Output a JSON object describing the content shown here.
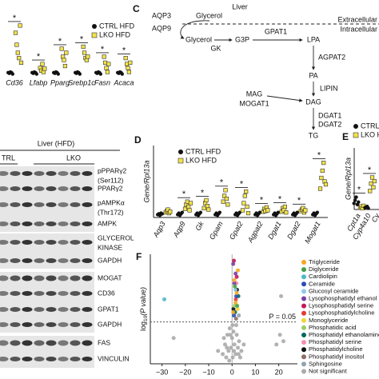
{
  "panel_b": {
    "categories": [
      "Cd36",
      "Lfabp",
      "Pparg",
      "Srebp1c",
      "Fasn",
      "Acaca"
    ],
    "significance": [
      "*",
      "*",
      "*",
      "*",
      "*",
      "*"
    ],
    "ylim": [
      0,
      10
    ],
    "series": [
      {
        "name": "CTRL HFD",
        "color": "#111111",
        "marker": "circle",
        "values": [
          [
            0.5,
            0.4,
            0.6,
            0.5,
            0.3
          ],
          [
            0.5,
            0.4,
            0.6,
            0.5,
            0.3
          ],
          [
            0.5,
            0.4,
            0.6,
            0.5,
            0.3
          ],
          [
            0.5,
            0.4,
            0.6,
            0.5,
            0.3
          ],
          [
            0.5,
            0.4,
            0.6,
            0.5,
            0.3
          ],
          [
            0.5,
            0.4,
            0.6,
            0.5,
            0.3
          ]
        ]
      },
      {
        "name": "LKO HFD",
        "color": "#f2e24b",
        "marker": "square",
        "values": [
          [
            6.5,
            4.7,
            3.5,
            2.7,
            7.6,
            2.0
          ],
          [
            1.2,
            0.8,
            1.8,
            0.6,
            1.1
          ],
          [
            4.1,
            2.9,
            2.4,
            1.5,
            3.5
          ],
          [
            4.4,
            3.5,
            2.7,
            2.4,
            2.9
          ],
          [
            2.9,
            2.0,
            1.2,
            0.6,
            1.8
          ],
          [
            2.7,
            1.8,
            1.2,
            0.6,
            2.0
          ]
        ]
      }
    ]
  },
  "panel_c": {
    "label": "C",
    "nodes": [
      {
        "text": "Liver",
        "color": "#111111"
      },
      {
        "text": "AQP3",
        "color": "#111111"
      },
      {
        "text": "Glycerol",
        "color": "#111111"
      },
      {
        "text": "Extracellular",
        "color": "#111111"
      },
      {
        "text": "Intracellular",
        "color": "#111111"
      },
      {
        "text": "AQP9",
        "color": "#2b3aa8"
      },
      {
        "text": "Glycerol",
        "color": "#111111"
      },
      {
        "text": "GK",
        "color": "#2b3aa8"
      },
      {
        "text": "G3P",
        "color": "#111111"
      },
      {
        "text": "GPAT1",
        "color": "#2b3aa8"
      },
      {
        "text": "LPA",
        "color": "#111111"
      },
      {
        "text": "AGPAT2",
        "color": "#2b3aa8"
      },
      {
        "text": "PA",
        "color": "#111111"
      },
      {
        "text": "LIPIN",
        "color": "#111111"
      },
      {
        "text": "MAG",
        "color": "#111111"
      },
      {
        "text": "MOGAT1",
        "color": "#2b3aa8"
      },
      {
        "text": "DAG",
        "color": "#111111"
      },
      {
        "text": "DGAT1",
        "color": "#2b3aa8"
      },
      {
        "text": "DGAT2",
        "color": "#2b3aa8"
      },
      {
        "text": "TG",
        "color": "#111111"
      }
    ]
  },
  "blot": {
    "title": "Liver (HFD)",
    "groups": [
      "TRL",
      "LKO"
    ],
    "bands": [
      "pPPARγ2",
      "(Ser112)",
      "PPARγ2",
      "pAMPKα",
      "(Thr172)",
      "AMPK",
      "GLYCEROL",
      "KINASE",
      "GAPDH",
      "MOGAT",
      "CD36",
      "GPAT1",
      "GAPDH",
      "FAS",
      "VINCULIN"
    ]
  },
  "panel_d": {
    "label": "D",
    "y_label": "Gene/Rpl13a",
    "categories": [
      "Aqp3",
      "Aqp9",
      "Gk",
      "Gpam",
      "Gpat2",
      "Agpat2",
      "Dgat1",
      "Dgat2",
      "Mogat1"
    ],
    "significance": [
      null,
      "*",
      "*",
      "*",
      "*",
      "*",
      "*",
      "*",
      "*"
    ],
    "ylim": [
      0,
      10
    ],
    "series": [
      {
        "name": "CTRL HFD",
        "color": "#111111",
        "marker": "circle",
        "values": [
          [
            0.4,
            0.5,
            0.3,
            0.6,
            0.5
          ],
          [
            0.4,
            0.6,
            0.3,
            0.5,
            0.7
          ],
          [
            0.4,
            0.6,
            0.3,
            0.5,
            0.7
          ],
          [
            0.4,
            0.6,
            0.3,
            0.5,
            0.7
          ],
          [
            0.4,
            0.6,
            0.3,
            0.5,
            0.7
          ],
          [
            0.4,
            0.6,
            0.3,
            0.5,
            0.7
          ],
          [
            0.4,
            0.6,
            0.3,
            0.5,
            0.7
          ],
          [
            0.4,
            0.6,
            0.3,
            0.5,
            0.7
          ],
          [
            0.4,
            0.6,
            0.3,
            0.5,
            0.7
          ]
        ]
      },
      {
        "name": "LKO HFD",
        "color": "#f2e24b",
        "marker": "square",
        "values": [
          [
            0.7,
            0.9,
            1.1,
            0.6,
            0.8
          ],
          [
            1.2,
            1.8,
            2.2,
            1.5,
            1.0,
            2.0
          ],
          [
            1.3,
            2.0,
            2.4,
            1.6,
            1.1
          ],
          [
            2.2,
            3.0,
            3.8,
            2.6,
            1.8
          ],
          [
            1.0,
            2.0,
            3.0,
            3.6,
            1.5,
            0.6
          ],
          [
            0.8,
            1.2,
            0.9,
            1.4,
            1.0
          ],
          [
            0.8,
            1.3,
            1.0,
            1.5,
            0.7
          ],
          [
            0.9,
            1.1,
            1.3,
            0.7,
            1.0
          ],
          [
            4.0,
            5.5,
            6.5,
            7.6,
            5.0,
            4.6
          ]
        ]
      }
    ]
  },
  "panel_e": {
    "label": "E",
    "y_label": "Gene/Rpl13a",
    "categories": [
      "Cpt1a",
      "Cyp4a10",
      "Cy"
    ],
    "significance": [
      "*",
      "*",
      null
    ],
    "ylim": [
      0,
      10
    ],
    "series": [
      {
        "name": "CTRL H",
        "color": "#111111",
        "marker": "circle",
        "values": [
          [
            1.0,
            1.5,
            2.0,
            0.8,
            1.2
          ],
          [
            0.3,
            0.4,
            0.5,
            0.2
          ],
          []
        ]
      },
      {
        "name": "LKO HF",
        "color": "#f2e24b",
        "marker": "square",
        "values": [
          [
            0.3,
            0.5,
            0.2,
            0.6
          ],
          [
            3.0,
            4.2,
            5.2,
            3.6,
            4.6
          ],
          []
        ]
      }
    ]
  },
  "panel_f": {
    "label": "F",
    "y_label": [
      "log",
      "10",
      "(P value)"
    ],
    "xlim": [
      -35,
      28
    ],
    "ylim": [
      0,
      3.4
    ],
    "xticks": [
      {
        "value": -30,
        "label": "−30"
      },
      {
        "value": -20,
        "label": "−20"
      },
      {
        "value": -10,
        "label": "−10"
      },
      0,
      10,
      20
    ],
    "threshold": {
      "value": 1.301,
      "label": "P = 0.05"
    },
    "series": [
      {
        "name": "Triglyceride",
        "color": "#f5a623",
        "x": [
          1,
          2,
          1.5,
          2.5,
          0.5
        ],
        "y": [
          2.6,
          2.2,
          1.9,
          2.9,
          1.6
        ]
      },
      {
        "name": "Diglyceride",
        "color": "#43a047",
        "x": [
          1.2,
          2.2
        ],
        "y": [
          2.4,
          1.8
        ]
      },
      {
        "name": "Cardiolipin",
        "color": "#4fb8c9",
        "x": [
          -29
        ],
        "y": [
          2.0
        ]
      },
      {
        "name": "Ceramide",
        "color": "#2a4fb5",
        "x": [
          1.8,
          0.8
        ],
        "y": [
          2.1,
          1.5
        ]
      },
      {
        "name": "Glucosyl ceramide",
        "color": "#8fc9f0",
        "x": [
          1.4
        ],
        "y": [
          2.3
        ]
      },
      {
        "name": "Lysophosphatidyl ethanol",
        "color": "#7b3fa0",
        "x": [
          0.5,
          1.5,
          1
        ],
        "y": [
          3.1,
          2.8,
          2.5
        ]
      },
      {
        "name": "Lysophosphatidyl serine",
        "color": "#c2185b",
        "x": [
          0.8,
          2
        ],
        "y": [
          3.2,
          2.7
        ]
      },
      {
        "name": "Lysophosphatidylcholine",
        "color": "#e53935",
        "x": [
          1.6
        ],
        "y": [
          2.0
        ]
      },
      {
        "name": "Monoglyceride",
        "color": "#f2d43b",
        "x": [
          2.4
        ],
        "y": [
          1.7
        ]
      },
      {
        "name": "Phosphatidic acid",
        "color": "#9ccc65",
        "x": [
          1.1
        ],
        "y": [
          1.8
        ]
      },
      {
        "name": "Phosphatidyl ethanolamine",
        "color": "#00695c",
        "x": [
          2.7,
          1.3
        ],
        "y": [
          2.1,
          1.6
        ]
      },
      {
        "name": "Phosphatidyl serine",
        "color": "#f48fb1",
        "x": [
          1.9
        ],
        "y": [
          2.5
        ]
      },
      {
        "name": "Phosphatidylcholine",
        "color": "#111111",
        "x": [
          0.6,
          2.1
        ],
        "y": [
          1.7,
          2.3
        ]
      },
      {
        "name": "Phosphatidyl inositol",
        "color": "#8d6e63",
        "x": [
          1.7
        ],
        "y": [
          1.4
        ]
      },
      {
        "name": "Sphingosine",
        "color": "#90a4ae",
        "x": [
          2.9
        ],
        "y": [
          1.5
        ]
      },
      {
        "name": "Not significant",
        "color": "#aaaaaa",
        "x": [
          -4,
          -3,
          -2.5,
          -2,
          -1.5,
          -1,
          -0.5,
          0,
          0.3,
          0.6,
          1,
          1.5,
          2,
          2.5,
          3,
          3.5,
          4,
          -3.5,
          -1.2,
          0.8,
          1.8,
          -2.2,
          2.8,
          0.2,
          -0.8,
          5,
          -6,
          19,
          20.5,
          21,
          22,
          -25
        ],
        "y": [
          0.3,
          0.6,
          0.2,
          0.9,
          0.4,
          1.1,
          0.5,
          0.8,
          0.2,
          1.0,
          0.6,
          0.3,
          0.9,
          0.5,
          0.7,
          0.2,
          0.4,
          0.8,
          0.1,
          0.4,
          1.2,
          0.5,
          0.3,
          1.2,
          0.9,
          0.6,
          0.4,
          0.6,
          0.9,
          2.1,
          0.7,
          0.8
        ]
      }
    ]
  }
}
